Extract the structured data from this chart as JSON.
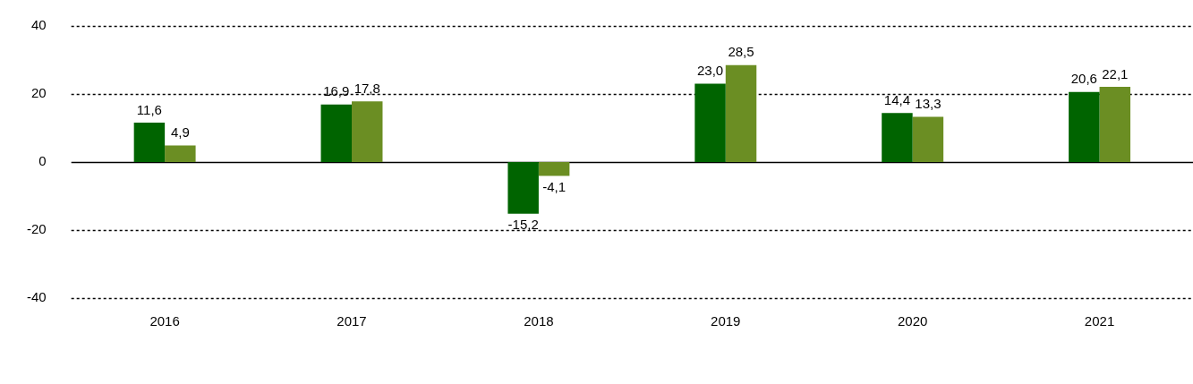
{
  "chart_data": {
    "type": "bar",
    "categories": [
      "2016",
      "2017",
      "2018",
      "2019",
      "2020",
      "2021"
    ],
    "series": [
      {
        "color": "#006400",
        "values": [
          11.6,
          16.9,
          -15.2,
          23.0,
          14.4,
          20.6
        ],
        "value_labels": [
          "11,6",
          "16,9",
          "-15,2",
          "23,0",
          "14,4",
          "20,6"
        ]
      },
      {
        "color": "#6b8e23",
        "values": [
          4.9,
          17.8,
          -4.1,
          28.5,
          13.3,
          22.1
        ],
        "value_labels": [
          "4,9",
          "17,8",
          "-4,1",
          "28,5",
          "13,3",
          "22,1"
        ]
      }
    ],
    "ylim": [
      -40,
      40
    ],
    "yticks": [
      -40,
      -20,
      0,
      20,
      40
    ],
    "grid": "y",
    "legend": false
  }
}
